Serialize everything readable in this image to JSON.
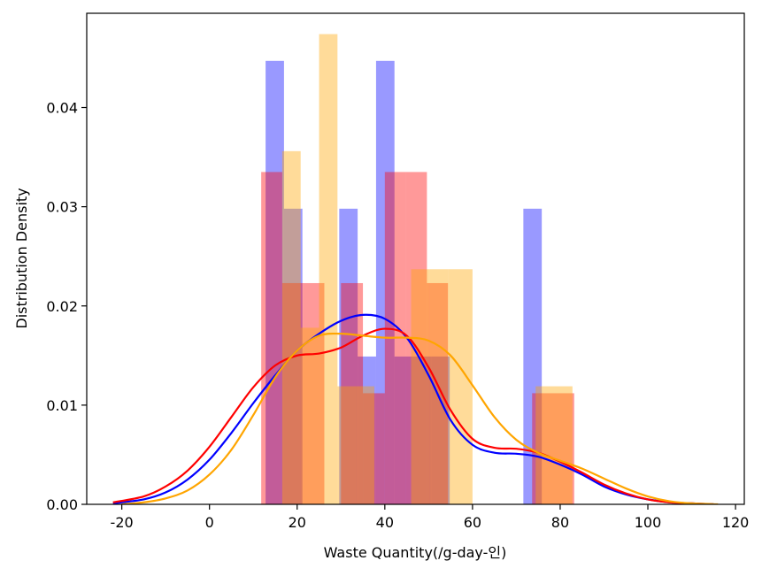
{
  "chart_data": {
    "type": "histogram_kde",
    "xlabel": "Waste Quantity(/g-day-인)",
    "ylabel": "Distribution Density",
    "xlim": [
      -28,
      122
    ],
    "ylim": [
      0,
      0.0495
    ],
    "xticks": [
      -20,
      0,
      20,
      40,
      60,
      80,
      100,
      120
    ],
    "yticks": [
      0.0,
      0.01,
      0.02,
      0.03,
      0.04
    ],
    "ytick_labels": [
      "0.00",
      "0.01",
      "0.02",
      "0.03",
      "0.04"
    ],
    "grid": false,
    "series": [
      {
        "color": "#0000ff",
        "hist_alpha": 0.4,
        "bins": [
          {
            "x0": 12.8,
            "x1": 17.0,
            "density": 0.0447
          },
          {
            "x0": 17.0,
            "x1": 21.2,
            "density": 0.0298
          },
          {
            "x0": 29.6,
            "x1": 33.8,
            "density": 0.0298
          },
          {
            "x0": 33.8,
            "x1": 38.0,
            "density": 0.0149
          },
          {
            "x0": 38.0,
            "x1": 42.2,
            "density": 0.0447
          },
          {
            "x0": 42.2,
            "x1": 46.4,
            "density": 0.0149
          },
          {
            "x0": 46.4,
            "x1": 50.6,
            "density": 0.0149
          },
          {
            "x0": 50.6,
            "x1": 54.8,
            "density": 0.0149
          },
          {
            "x0": 71.6,
            "x1": 75.8,
            "density": 0.0298
          }
        ],
        "kde": {
          "x": [
            -22,
            -15,
            -10,
            -5,
            0,
            5,
            10,
            15,
            20,
            25,
            30,
            35,
            40,
            45,
            50,
            55,
            60,
            65,
            70,
            75,
            80,
            85,
            90,
            95,
            100,
            105,
            110,
            115
          ],
          "y": [
            0.0001,
            0.0005,
            0.0012,
            0.0025,
            0.0045,
            0.0072,
            0.0102,
            0.013,
            0.0155,
            0.0172,
            0.0185,
            0.0191,
            0.0187,
            0.0168,
            0.013,
            0.0085,
            0.006,
            0.0052,
            0.0051,
            0.0048,
            0.004,
            0.003,
            0.0018,
            0.001,
            0.0005,
            0.0002,
            0.0001,
            0.0
          ]
        }
      },
      {
        "color": "#ff0000",
        "hist_alpha": 0.4,
        "bins": [
          {
            "x0": 11.8,
            "x1": 16.6,
            "density": 0.0335
          },
          {
            "x0": 16.6,
            "x1": 21.4,
            "density": 0.0223
          },
          {
            "x0": 21.4,
            "x1": 26.2,
            "density": 0.0223
          },
          {
            "x0": 30.0,
            "x1": 35.0,
            "density": 0.0223
          },
          {
            "x0": 35.0,
            "x1": 40.0,
            "density": 0.0112
          },
          {
            "x0": 40.0,
            "x1": 44.8,
            "density": 0.0335
          },
          {
            "x0": 44.8,
            "x1": 49.6,
            "density": 0.0335
          },
          {
            "x0": 49.6,
            "x1": 54.4,
            "density": 0.0223
          },
          {
            "x0": 73.6,
            "x1": 78.4,
            "density": 0.0112
          },
          {
            "x0": 78.4,
            "x1": 83.2,
            "density": 0.0112
          }
        ],
        "kde": {
          "x": [
            -22,
            -15,
            -10,
            -5,
            0,
            5,
            10,
            15,
            20,
            25,
            30,
            35,
            40,
            45,
            50,
            55,
            60,
            65,
            70,
            75,
            80,
            85,
            90,
            95,
            100,
            105,
            110,
            115
          ],
          "y": [
            0.0002,
            0.0008,
            0.0018,
            0.0034,
            0.0058,
            0.0088,
            0.0118,
            0.014,
            0.015,
            0.0152,
            0.0158,
            0.017,
            0.0177,
            0.017,
            0.0138,
            0.0095,
            0.0066,
            0.0057,
            0.0056,
            0.0052,
            0.0043,
            0.0032,
            0.002,
            0.0011,
            0.0005,
            0.0002,
            0.0001,
            0.0
          ]
        }
      },
      {
        "color": "#ffa500",
        "hist_alpha": 0.4,
        "bins": [
          {
            "x0": 16.6,
            "x1": 20.8,
            "density": 0.0356
          },
          {
            "x0": 20.8,
            "x1": 25.0,
            "density": 0.0178
          },
          {
            "x0": 25.0,
            "x1": 29.2,
            "density": 0.0474
          },
          {
            "x0": 29.2,
            "x1": 33.4,
            "density": 0.0119
          },
          {
            "x0": 33.4,
            "x1": 37.6,
            "density": 0.0119
          },
          {
            "x0": 46.0,
            "x1": 50.2,
            "density": 0.0237
          },
          {
            "x0": 50.2,
            "x1": 54.4,
            "density": 0.0237
          },
          {
            "x0": 54.4,
            "x1": 60.0,
            "density": 0.0237
          },
          {
            "x0": 74.4,
            "x1": 78.6,
            "density": 0.0119
          },
          {
            "x0": 78.6,
            "x1": 82.8,
            "density": 0.0119
          }
        ],
        "kde": {
          "x": [
            -20,
            -15,
            -10,
            -5,
            0,
            5,
            10,
            15,
            20,
            25,
            30,
            35,
            40,
            45,
            50,
            55,
            60,
            65,
            70,
            75,
            80,
            85,
            90,
            95,
            100,
            105,
            110,
            116
          ],
          "y": [
            0.0,
            0.0002,
            0.0006,
            0.0014,
            0.003,
            0.0055,
            0.009,
            0.0128,
            0.0155,
            0.017,
            0.0172,
            0.017,
            0.0168,
            0.0168,
            0.0165,
            0.015,
            0.012,
            0.0088,
            0.0065,
            0.0052,
            0.0044,
            0.0036,
            0.0026,
            0.0016,
            0.0008,
            0.0003,
            0.0001,
            0.0
          ]
        }
      }
    ]
  }
}
